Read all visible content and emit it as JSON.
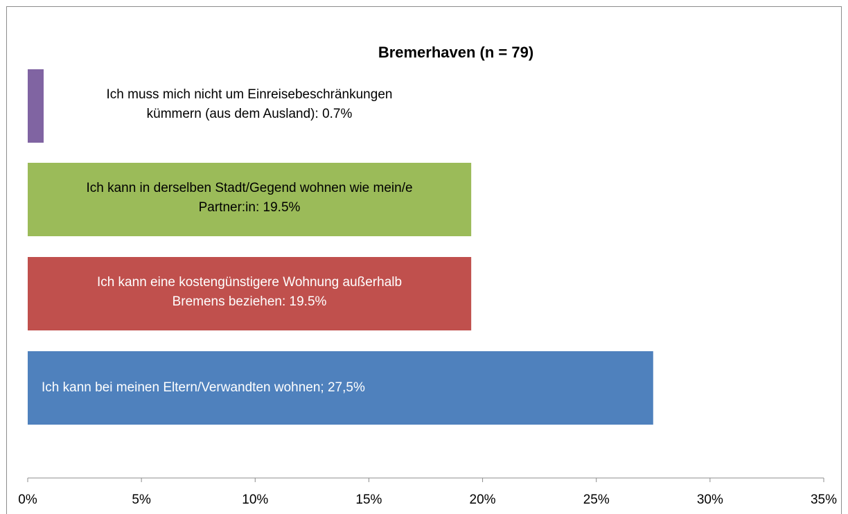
{
  "chart_data": {
    "type": "barh",
    "title": "Bremerhaven (n = 79)",
    "values": [
      0.7,
      19.5,
      19.5,
      27.5
    ],
    "value_labels": [
      [
        "Ich muss mich nicht um Einreisebeschränkungen",
        "kümmern (aus dem Ausland): 0.7%"
      ],
      [
        "Ich kann in derselben Stadt/Gegend wohnen wie mein/e",
        "Partner:in: 19.5%"
      ],
      [
        "Ich kann eine kostengünstigere Wohnung außerhalb",
        "Bremens beziehen: 19.5%"
      ],
      [
        "Ich kann bei meinen Eltern/Verwandten wohnen; 27,5%"
      ]
    ],
    "colors": [
      "#8064a2",
      "#9bbb59",
      "#c0504d",
      "#4f81bd"
    ],
    "label_colors": [
      "#000000",
      "#000000",
      "#ffffff",
      "#ffffff"
    ],
    "xlim": [
      0,
      35
    ],
    "xticks": [
      {
        "value": 0,
        "label": "0%"
      },
      {
        "value": 5,
        "label": "5%"
      },
      {
        "value": 10,
        "label": "10%"
      },
      {
        "value": 15,
        "label": "15%"
      },
      {
        "value": 20,
        "label": "20%"
      },
      {
        "value": 25,
        "label": "25%"
      },
      {
        "value": 30,
        "label": "30%"
      },
      {
        "value": 35,
        "label": "35%"
      }
    ]
  }
}
